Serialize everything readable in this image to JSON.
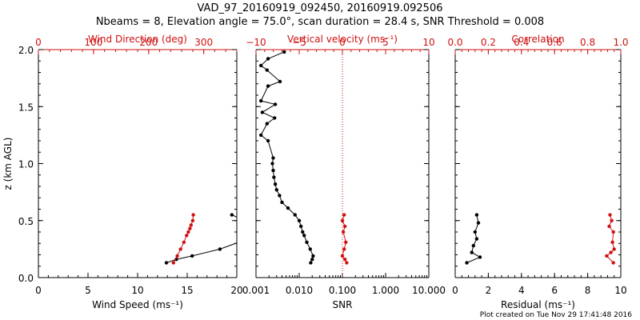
{
  "title_line1": "VAD_97_20160919_092450, 20160919.092506",
  "title_line2": "Nbeams = 8, Elevation angle = 75.0°, scan duration = 28.4 s, SNR Threshold = 0.008",
  "footer": "Plot created on Tue Nov 29 17:41:48 2016",
  "colors": {
    "black": "#000000",
    "red": "#d01010"
  },
  "chart_data": [
    {
      "type": "line",
      "panel": "wind",
      "ylabel": "z (km AGL)",
      "ylim": [
        0,
        2.0
      ],
      "yticks": [
        0.0,
        0.5,
        1.0,
        1.5,
        2.0
      ],
      "ytick_labels": [
        "0.0",
        "0.5",
        "1.0",
        "1.5",
        "2.0"
      ],
      "xlabel_bottom": "Wind Speed (ms⁻¹)",
      "xlim_bottom": [
        0,
        20
      ],
      "xticks_bottom": [
        0,
        5,
        10,
        15,
        20
      ],
      "xlabel_top": "Wind Direction (deg)",
      "xlim_top": [
        0,
        360
      ],
      "xticks_top": [
        0,
        100,
        200,
        300
      ],
      "series": [
        {
          "color": "#000000",
          "axis": "bottom",
          "x": [
            12.9,
            13.9,
            15.5,
            18.3,
            20.2
          ],
          "y": [
            0.13,
            0.16,
            0.19,
            0.25,
            0.31
          ]
        },
        {
          "color": "#000000",
          "axis": "bottom",
          "x": [
            19.5,
            20.3
          ],
          "y": [
            0.55,
            0.52
          ]
        },
        {
          "color": "#d01010",
          "axis": "top",
          "x": [
            245,
            252,
            258,
            264,
            269,
            272,
            275,
            277,
            280,
            281
          ],
          "y": [
            0.13,
            0.19,
            0.25,
            0.31,
            0.37,
            0.4,
            0.43,
            0.46,
            0.5,
            0.55
          ]
        }
      ]
    },
    {
      "type": "line",
      "panel": "snr",
      "ylim": [
        0,
        2.0
      ],
      "yticks": [
        0.0,
        0.5,
        1.0,
        1.5,
        2.0
      ],
      "xlabel_bottom": "SNR",
      "xscale_bottom": "log",
      "xlim_bottom": [
        0.001,
        10
      ],
      "xticks_bottom": [
        0.001,
        0.01,
        0.1,
        1,
        10
      ],
      "xtick_labels_bottom": [
        "0.001",
        "0.010",
        "0.100",
        "1.000",
        "10.000"
      ],
      "xlabel_top": "Vertical velocity (ms⁻¹)",
      "xlim_top": [
        -10,
        10
      ],
      "xticks_top": [
        -10,
        -5,
        0,
        5,
        10
      ],
      "xtick_labels_top": [
        "−10",
        "−5",
        "0",
        "5",
        "10"
      ],
      "zero_line_top": 0,
      "series": [
        {
          "color": "#000000",
          "axis": "bottom",
          "x": [
            0.0045,
            0.0019,
            0.0013,
            0.0018,
            0.0036,
            0.0019,
            0.0013,
            0.0028,
            0.0014,
            0.0027,
            0.0018,
            0.0013,
            0.0019,
            0.0025,
            0.0024,
            0.0025,
            0.0026,
            0.0028,
            0.003,
            0.0035,
            0.004,
            0.0055,
            0.008,
            0.01,
            0.011,
            0.012,
            0.013,
            0.015,
            0.018,
            0.021,
            0.02,
            0.0185
          ],
          "y": [
            1.98,
            1.92,
            1.86,
            1.82,
            1.72,
            1.68,
            1.55,
            1.52,
            1.45,
            1.4,
            1.35,
            1.25,
            1.2,
            1.05,
            1.0,
            0.94,
            0.88,
            0.82,
            0.77,
            0.72,
            0.66,
            0.61,
            0.55,
            0.5,
            0.45,
            0.4,
            0.37,
            0.31,
            0.25,
            0.19,
            0.16,
            0.13
          ]
        },
        {
          "color": "#d01010",
          "axis": "top",
          "x": [
            0.2,
            0.0,
            0.3,
            0.1,
            0.4,
            0.2,
            0.0,
            0.3,
            0.5
          ],
          "y": [
            0.55,
            0.5,
            0.45,
            0.4,
            0.31,
            0.25,
            0.19,
            0.16,
            0.13
          ]
        }
      ]
    },
    {
      "type": "line",
      "panel": "residual",
      "ylim": [
        0,
        2.0
      ],
      "yticks": [
        0.0,
        0.5,
        1.0,
        1.5,
        2.0
      ],
      "xlabel_bottom": "Residual (ms⁻¹)",
      "xlim_bottom": [
        0,
        10
      ],
      "xticks_bottom": [
        0,
        2,
        4,
        6,
        8,
        10
      ],
      "xlabel_top": "Correlation",
      "xlim_top": [
        0,
        1
      ],
      "xticks_top": [
        0.0,
        0.2,
        0.4,
        0.6,
        0.8,
        1.0
      ],
      "xtick_labels_top": [
        "0.0",
        "0.2",
        "0.4",
        "0.6",
        "0.8",
        "1.0"
      ],
      "series": [
        {
          "color": "#000000",
          "axis": "bottom",
          "x": [
            1.3,
            1.4,
            1.2,
            1.3,
            1.1,
            1.0,
            1.5,
            0.7
          ],
          "y": [
            0.55,
            0.48,
            0.4,
            0.34,
            0.28,
            0.22,
            0.18,
            0.13
          ]
        },
        {
          "color": "#d01010",
          "axis": "top",
          "x": [
            0.935,
            0.945,
            0.93,
            0.955,
            0.95,
            0.96,
            0.94,
            0.915,
            0.955
          ],
          "y": [
            0.55,
            0.5,
            0.45,
            0.4,
            0.31,
            0.25,
            0.22,
            0.19,
            0.13
          ]
        }
      ]
    }
  ]
}
